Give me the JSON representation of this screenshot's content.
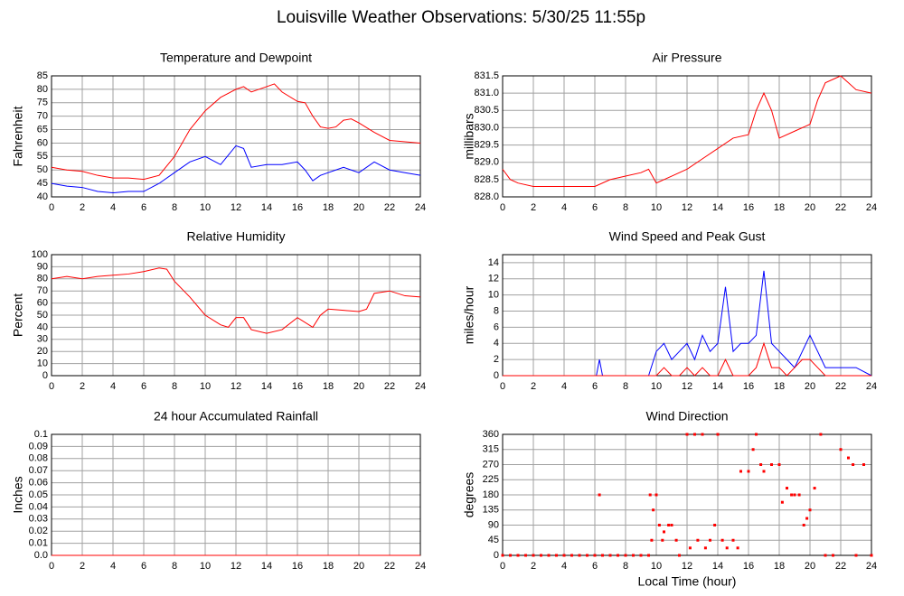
{
  "title": "Louisville Weather Observations: 5/30/25 11:55p",
  "chart_data": [
    {
      "type": "line",
      "title": "Temperature and Dewpoint",
      "ylabel": "Fahrenheit",
      "x": [
        0,
        1,
        2,
        3,
        4,
        5,
        6,
        7,
        8,
        9,
        10,
        11,
        12,
        12.5,
        13,
        14,
        14.5,
        15,
        16,
        16.5,
        17,
        17.5,
        18,
        18.5,
        19,
        19.5,
        20,
        21,
        22,
        23,
        24
      ],
      "series": [
        {
          "color": "#ff0000",
          "values": [
            51,
            50,
            49.5,
            48,
            47,
            47,
            46.5,
            48,
            55,
            65,
            72,
            77,
            80,
            81,
            79,
            81,
            82,
            79,
            75.5,
            75,
            70,
            66,
            65.5,
            66,
            68.5,
            69,
            67.5,
            64,
            61,
            60.5,
            60
          ]
        },
        {
          "color": "#0000ff",
          "values": [
            45,
            44,
            43.5,
            42,
            41.5,
            42,
            42,
            45,
            49,
            53,
            55,
            52,
            59,
            58,
            51,
            52,
            52,
            52,
            53,
            50,
            46,
            48,
            49,
            50,
            51,
            50,
            49,
            53,
            50,
            49,
            48
          ]
        }
      ],
      "xlim": [
        0,
        24
      ],
      "xticks": [
        0,
        2,
        4,
        6,
        8,
        10,
        12,
        14,
        16,
        18,
        20,
        22,
        24
      ],
      "ylim": [
        40,
        85
      ],
      "yticks": [
        40,
        45,
        50,
        55,
        60,
        65,
        70,
        75,
        80,
        85
      ],
      "grid": true
    },
    {
      "type": "line",
      "title": "Air Pressure",
      "ylabel": "millibars",
      "x": [
        0,
        0.5,
        1,
        2,
        5,
        6,
        7,
        8,
        9,
        9.5,
        10,
        11,
        12,
        13,
        14,
        15,
        16,
        16.5,
        17,
        17.5,
        18,
        19,
        20,
        20.5,
        21,
        22,
        23,
        24
      ],
      "series": [
        {
          "color": "#ff0000",
          "values": [
            828.8,
            828.5,
            828.4,
            828.3,
            828.3,
            828.3,
            828.5,
            828.6,
            828.7,
            828.8,
            828.4,
            828.6,
            828.8,
            829.1,
            829.4,
            829.7,
            829.8,
            830.5,
            831.0,
            830.5,
            829.7,
            829.9,
            830.1,
            830.8,
            831.3,
            831.5,
            831.1,
            831.0
          ]
        }
      ],
      "xlim": [
        0,
        24
      ],
      "xticks": [
        0,
        2,
        4,
        6,
        8,
        10,
        12,
        14,
        16,
        18,
        20,
        22,
        24
      ],
      "ylim": [
        828.0,
        831.5
      ],
      "yticks": [
        {
          "value": 828.0,
          "label": "828.0"
        },
        828.5,
        {
          "value": 829.0,
          "label": "829.0"
        },
        829.5,
        {
          "value": 830.0,
          "label": "830.0"
        },
        830.5,
        {
          "value": 831.0,
          "label": "831.0"
        },
        831.5
      ],
      "grid": true
    },
    {
      "type": "line",
      "title": "Relative Humidity",
      "ylabel": "Percent",
      "x": [
        0,
        1,
        2,
        3,
        4,
        5,
        6,
        7,
        7.5,
        8,
        9,
        10,
        11,
        11.5,
        12,
        12.5,
        13,
        14,
        15,
        16,
        17,
        17.5,
        18,
        19,
        20,
        20.5,
        21,
        22,
        23,
        24
      ],
      "series": [
        {
          "color": "#ff0000",
          "values": [
            80,
            82,
            80,
            82,
            83,
            84,
            86,
            89,
            88,
            78,
            65,
            50,
            42,
            40,
            48,
            48,
            38,
            35,
            38,
            48,
            40,
            50,
            55,
            54,
            53,
            55,
            68,
            70,
            66,
            65
          ]
        }
      ],
      "xlim": [
        0,
        24
      ],
      "xticks": [
        0,
        2,
        4,
        6,
        8,
        10,
        12,
        14,
        16,
        18,
        20,
        22,
        24
      ],
      "ylim": [
        0,
        100
      ],
      "yticks": [
        0,
        10,
        20,
        30,
        40,
        50,
        60,
        70,
        80,
        90,
        100
      ],
      "grid": true
    },
    {
      "type": "line",
      "title": "Wind Speed and Peak Gust",
      "ylabel": "miles/hour",
      "x": [
        0,
        6.1,
        6.3,
        6.5,
        9.5,
        10,
        10.5,
        11,
        11.5,
        12,
        12.5,
        13,
        13.5,
        14,
        14.5,
        15,
        15.5,
        16,
        16.5,
        17,
        17.5,
        18,
        18.5,
        19,
        19.5,
        20,
        20.5,
        21,
        22,
        23,
        24
      ],
      "series": [
        {
          "color": "#0000ff",
          "values": [
            0,
            0,
            2,
            0,
            0,
            3,
            4,
            2,
            3,
            4,
            2,
            5,
            3,
            4,
            11,
            3,
            4,
            4,
            5,
            13,
            4,
            3,
            2,
            1,
            3,
            5,
            3,
            1,
            1,
            1,
            0
          ]
        },
        {
          "color": "#ff0000",
          "values": [
            0,
            0,
            0,
            0,
            0,
            0,
            1,
            0,
            0,
            1,
            0,
            1,
            0,
            0,
            2,
            0,
            0,
            0,
            1,
            4,
            1,
            1,
            0,
            1,
            2,
            2,
            1,
            0,
            0,
            0,
            0
          ]
        }
      ],
      "xlim": [
        0,
        24
      ],
      "xticks": [
        0,
        2,
        4,
        6,
        8,
        10,
        12,
        14,
        16,
        18,
        20,
        22,
        24
      ],
      "ylim": [
        0,
        15
      ],
      "yticks": [
        0,
        2,
        4,
        6,
        8,
        10,
        12,
        14
      ],
      "grid": true
    },
    {
      "type": "line",
      "title": "24 hour Accumulated Rainfall",
      "ylabel": "Inches",
      "x": [
        0,
        24
      ],
      "series": [
        {
          "color": "#ff0000",
          "values": [
            0,
            0
          ]
        }
      ],
      "xlim": [
        0,
        24
      ],
      "xticks": [
        0,
        2,
        4,
        6,
        8,
        10,
        12,
        14,
        16,
        18,
        20,
        22,
        24
      ],
      "ylim": [
        0,
        0.1
      ],
      "yticks": [
        {
          "value": 0,
          "label": "0.0"
        },
        0.01,
        0.02,
        0.03,
        0.04,
        0.05,
        0.06,
        0.07,
        0.08,
        0.09,
        0.1
      ],
      "grid": true
    },
    {
      "type": "scatter",
      "title": "Wind Direction",
      "ylabel": "degrees",
      "xlabel": "Local Time (hour)",
      "series": [
        {
          "color": "#ff0000",
          "x": [
            0,
            0.5,
            1,
            1.5,
            2,
            2.5,
            3,
            3.5,
            4,
            4.5,
            5,
            5.5,
            6,
            6.3,
            6.5,
            7,
            7.5,
            8,
            8.5,
            9,
            9.5,
            9.6,
            9.7,
            9.8,
            10,
            10.2,
            10.4,
            10.5,
            10.8,
            11,
            11.3,
            11.5,
            12,
            12.2,
            12.5,
            12.7,
            13,
            13.2,
            13.5,
            13.8,
            14,
            14.3,
            14.6,
            15,
            15.3,
            15.5,
            16,
            16.3,
            16.5,
            16.8,
            17,
            17.5,
            18,
            18.2,
            18.5,
            18.8,
            19,
            19.3,
            19.6,
            19.8,
            20,
            20.3,
            20.7,
            21,
            21.5,
            22,
            22.5,
            22.8,
            23,
            23.5,
            24
          ],
          "values": [
            0,
            0,
            0,
            0,
            0,
            0,
            0,
            0,
            0,
            0,
            0,
            0,
            0,
            180,
            0,
            0,
            0,
            0,
            0,
            0,
            0,
            180,
            45,
            135,
            180,
            90,
            45,
            70,
            90,
            90,
            45,
            0,
            360,
            22,
            360,
            45,
            360,
            22,
            45,
            90,
            360,
            45,
            22,
            45,
            22,
            250,
            250,
            315,
            360,
            270,
            250,
            270,
            270,
            158,
            200,
            180,
            180,
            180,
            90,
            110,
            135,
            200,
            360,
            0,
            0,
            315,
            290,
            270,
            0,
            270,
            0
          ]
        }
      ],
      "xlim": [
        0,
        24
      ],
      "xticks": [
        0,
        2,
        4,
        6,
        8,
        10,
        12,
        14,
        16,
        18,
        20,
        22,
        24
      ],
      "ylim": [
        0,
        360
      ],
      "yticks": [
        0,
        45,
        90,
        135,
        180,
        225,
        270,
        315,
        360
      ],
      "grid": true
    }
  ]
}
